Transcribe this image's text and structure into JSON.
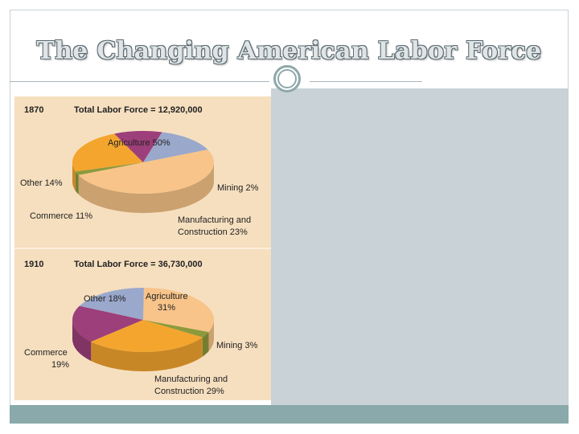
{
  "slide": {
    "title": "The Changing American Labor Force"
  },
  "colors": {
    "agriculture": "#f8c489",
    "mining": "#8c9a3c",
    "manufacturing": "#f4a52e",
    "commerce": "#9c3f7a",
    "other": "#9aa8cc",
    "panel": "#f6dfbf",
    "right_panel": "#c8d2d7",
    "bottom_bar": "#8aa9aa"
  },
  "chart_data": [
    {
      "type": "pie",
      "year": "1870",
      "title": "Total Labor Force = 12,920,000",
      "slices": [
        {
          "key": "agriculture",
          "value": 50,
          "label": "Agriculture 50%"
        },
        {
          "key": "mining",
          "value": 2,
          "label": "Mining 2%"
        },
        {
          "key": "manufacturing",
          "value": 23,
          "label_lines": [
            "Manufacturing and",
            "Construction 23%"
          ]
        },
        {
          "key": "commerce",
          "value": 11,
          "label": "Commerce 11%"
        },
        {
          "key": "other",
          "value": 14,
          "label": "Other 14%"
        }
      ]
    },
    {
      "type": "pie",
      "year": "1910",
      "title": "Total Labor Force = 36,730,000",
      "slices": [
        {
          "key": "agriculture",
          "value": 31,
          "label_lines": [
            "Agriculture",
            "31%"
          ]
        },
        {
          "key": "mining",
          "value": 3,
          "label": "Mining 3%"
        },
        {
          "key": "manufacturing",
          "value": 29,
          "label_lines": [
            "Manufacturing and",
            "Construction 29%"
          ]
        },
        {
          "key": "commerce",
          "value": 19,
          "label_lines": [
            "Commerce",
            "19%"
          ]
        },
        {
          "key": "other",
          "value": 18,
          "label": "Other 18%"
        }
      ]
    }
  ]
}
